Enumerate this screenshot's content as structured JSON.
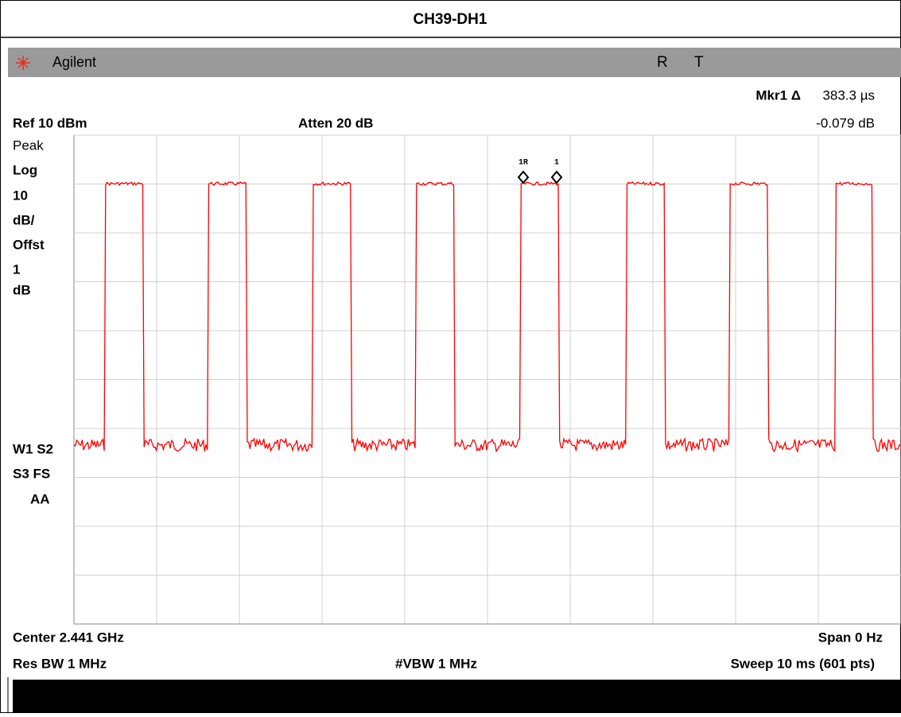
{
  "header": {
    "title": "CH39-DH1"
  },
  "top_bar": {
    "brand": "Agilent",
    "status": [
      "R",
      "T"
    ]
  },
  "marker": {
    "label": "Mkr1 Δ",
    "time": "383.3 µs",
    "level": "-0.079 dB",
    "tags": [
      "1R",
      "1"
    ]
  },
  "settings": {
    "ref": "Ref 10 dBm",
    "atten": "Atten 20 dB"
  },
  "left_labels": [
    "Peak",
    "Log",
    "10",
    "dB/",
    "Offst",
    "1",
    "dB",
    "W1 S2",
    "S3 FS",
    "AA"
  ],
  "footer": {
    "center": "Center 2.441 GHz",
    "span": "Span 0 Hz",
    "res_bw": "Res BW 1 MHz",
    "vbw": "#VBW 1 MHz",
    "sweep": "Sweep 10 ms (601 pts)"
  }
}
